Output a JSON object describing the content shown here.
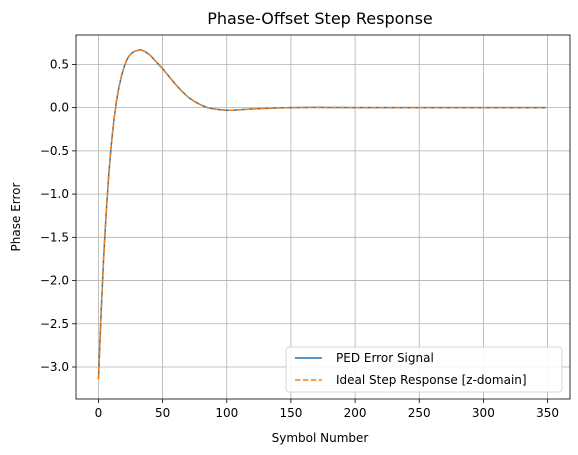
{
  "chart_data": {
    "type": "line",
    "title": "Phase-Offset Step Response",
    "xlabel": "Symbol Number",
    "ylabel": "Phase Error",
    "xlim": [
      -17.5,
      367.5
    ],
    "ylim": [
      -3.37,
      0.84
    ],
    "xticks": [
      0,
      50,
      100,
      150,
      200,
      250,
      300,
      350
    ],
    "xtick_labels": [
      "0",
      "50",
      "100",
      "150",
      "200",
      "250",
      "300",
      "350"
    ],
    "yticks": [
      -3.0,
      -2.5,
      -2.0,
      -1.5,
      -1.0,
      -0.5,
      0.0,
      0.5
    ],
    "ytick_labels": [
      "−3.0",
      "−2.5",
      "−2.0",
      "−1.5",
      "−1.0",
      "−0.5",
      "0.0",
      "0.5"
    ],
    "grid": true,
    "legend_position": "bottom-right",
    "series": [
      {
        "name": "PED Error Signal",
        "color": "#1f77b4",
        "style": "solid",
        "x": [
          0,
          2,
          4,
          6,
          8,
          10,
          12,
          14,
          16,
          18,
          20,
          22,
          24,
          26,
          28,
          30,
          33,
          36,
          40,
          45,
          50,
          55,
          60,
          65,
          70,
          75,
          80,
          85,
          90,
          95,
          100,
          105,
          110,
          115,
          120,
          130,
          140,
          150,
          160,
          170,
          180,
          190,
          200,
          220,
          240,
          260,
          280,
          300,
          320,
          340,
          349
        ],
        "y": [
          -3.14,
          -2.4,
          -1.75,
          -1.22,
          -0.78,
          -0.43,
          -0.15,
          0.07,
          0.24,
          0.37,
          0.47,
          0.55,
          0.6,
          0.63,
          0.65,
          0.66,
          0.67,
          0.65,
          0.61,
          0.53,
          0.45,
          0.36,
          0.27,
          0.19,
          0.12,
          0.07,
          0.03,
          0.0,
          -0.015,
          -0.025,
          -0.03,
          -0.03,
          -0.025,
          -0.02,
          -0.015,
          -0.008,
          -0.003,
          0.0,
          0.002,
          0.003,
          0.002,
          0.001,
          0.0,
          0.0,
          0.0,
          0.0,
          0.0,
          0.0,
          0.0,
          0.0,
          0.0
        ]
      },
      {
        "name": "Ideal Step Response [z-domain]",
        "color": "#ff7f0e",
        "style": "dashed",
        "x": [
          0,
          2,
          4,
          6,
          8,
          10,
          12,
          14,
          16,
          18,
          20,
          22,
          24,
          26,
          28,
          30,
          33,
          36,
          40,
          45,
          50,
          55,
          60,
          65,
          70,
          75,
          80,
          85,
          90,
          95,
          100,
          105,
          110,
          115,
          120,
          130,
          140,
          150,
          160,
          170,
          180,
          190,
          200,
          220,
          240,
          260,
          280,
          300,
          320,
          340,
          349
        ],
        "y": [
          -3.14,
          -2.4,
          -1.75,
          -1.22,
          -0.78,
          -0.43,
          -0.15,
          0.07,
          0.24,
          0.37,
          0.47,
          0.55,
          0.6,
          0.63,
          0.65,
          0.66,
          0.67,
          0.65,
          0.61,
          0.53,
          0.45,
          0.36,
          0.27,
          0.19,
          0.12,
          0.07,
          0.03,
          0.0,
          -0.015,
          -0.025,
          -0.03,
          -0.03,
          -0.025,
          -0.02,
          -0.015,
          -0.008,
          -0.003,
          0.0,
          0.002,
          0.003,
          0.002,
          0.001,
          0.0,
          0.0,
          0.0,
          0.0,
          0.0,
          0.0,
          0.0,
          0.0,
          0.0
        ]
      }
    ]
  }
}
